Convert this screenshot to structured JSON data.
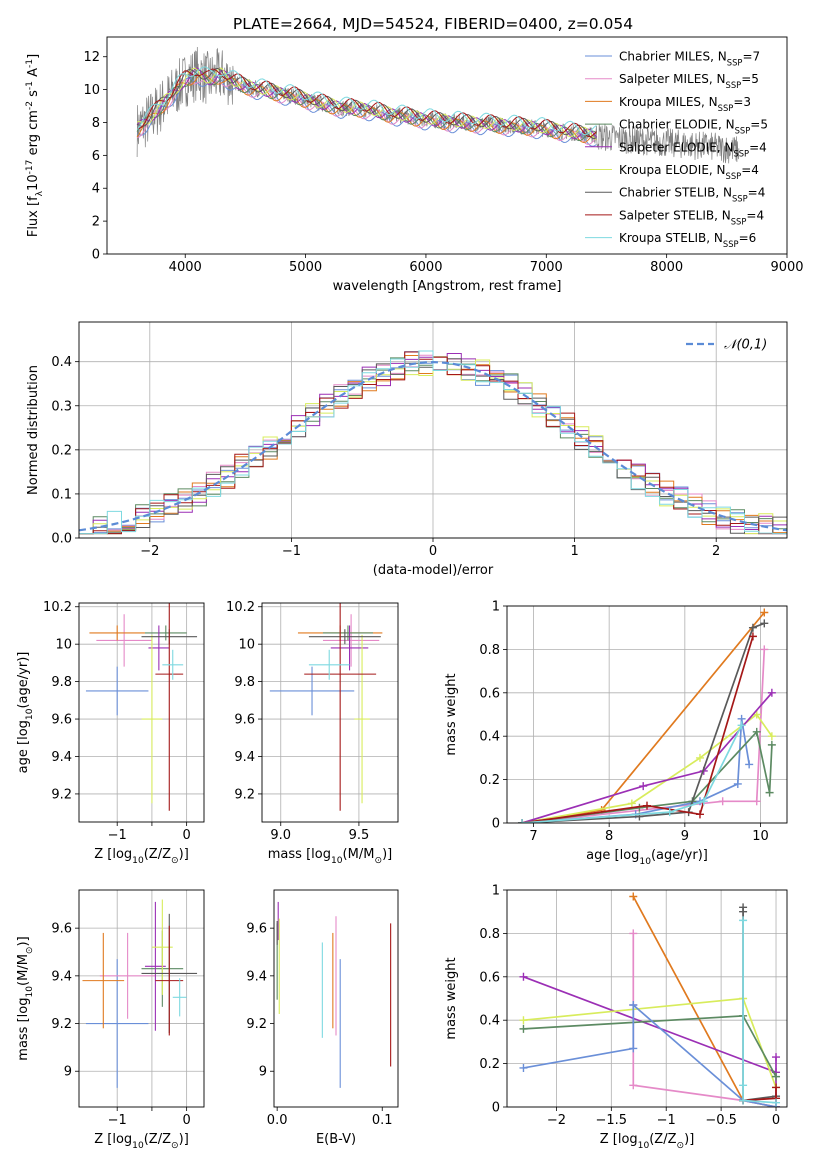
{
  "figure_title": "PLATE=2664, MJD=54524, FIBERID=0400, z=0.054",
  "legend_colors": {
    "Chabrier MILES": "#6a8fd8",
    "Salpeter MILES": "#e58ac8",
    "Kroupa MILES": "#e07a1f",
    "Chabrier ELODIE": "#5c8a62",
    "Salpeter ELODIE": "#9b2fb5",
    "Kroupa ELODIE": "#d8ec5c",
    "Chabrier STELIB": "#5a5a5a",
    "Salpeter STELIB": "#a51818",
    "Kroupa STELIB": "#7ed9e0"
  },
  "chart_data": [
    {
      "id": "spectrum",
      "type": "line",
      "xlabel": "wavelength [Angstrom, rest frame]",
      "ylabel": "Flux [f$_\\lambda$10$^{-17}$ erg cm$^{-2}$ s$^{-1}$ A$^{-1}$]",
      "xlim": [
        3350,
        9000
      ],
      "ylim": [
        0,
        13.2
      ],
      "xticks": [
        4000,
        5000,
        6000,
        7000,
        8000,
        9000
      ],
      "yticks": [
        0,
        2,
        4,
        6,
        8,
        10,
        12
      ],
      "data_color": "#808080",
      "continuum_x": [
        3600,
        3700,
        3800,
        3900,
        4000,
        4100,
        4200,
        4300,
        4400,
        4500,
        4700,
        4900,
        5100,
        5300,
        5500,
        5700,
        5900,
        6100,
        6300,
        6500,
        6700,
        6900,
        7100,
        7300,
        7500,
        7800,
        8100,
        8400,
        8600
      ],
      "continuum_y": [
        7.6,
        8.2,
        9.0,
        9.8,
        10.6,
        11.0,
        10.6,
        10.9,
        10.5,
        10.2,
        9.9,
        9.6,
        9.2,
        8.9,
        8.8,
        8.5,
        8.3,
        8.1,
        8.0,
        7.9,
        7.8,
        7.7,
        7.5,
        7.3,
        7.1,
        6.9,
        6.7,
        6.5,
        6.3
      ],
      "legend": [
        {
          "label": "Chabrier MILES, N$_{SSP}$=7",
          "color": "#6a8fd8"
        },
        {
          "label": "Salpeter MILES, N$_{SSP}$=5",
          "color": "#e58ac8"
        },
        {
          "label": "Kroupa MILES, N$_{SSP}$=3",
          "color": "#e07a1f"
        },
        {
          "label": "Chabrier ELODIE, N$_{SSP}$=5",
          "color": "#5c8a62"
        },
        {
          "label": "Salpeter ELODIE, N$_{SSP}$=4",
          "color": "#9b2fb5"
        },
        {
          "label": "Kroupa ELODIE, N$_{SSP}$=4",
          "color": "#d8ec5c"
        },
        {
          "label": "Chabrier STELIB, N$_{SSP}$=4",
          "color": "#5a5a5a"
        },
        {
          "label": "Salpeter STELIB, N$_{SSP}$=4",
          "color": "#a51818"
        },
        {
          "label": "Kroupa STELIB, N$_{SSP}$=6",
          "color": "#7ed9e0"
        }
      ]
    },
    {
      "id": "residuals",
      "type": "histogram",
      "xlabel": "(data-model)/error",
      "ylabel": "Normed distribution",
      "xlim": [
        -2.5,
        2.5
      ],
      "ylim": [
        0,
        0.49
      ],
      "xticks": [
        -2,
        -1,
        0,
        1,
        2
      ],
      "yticks": [
        0.0,
        0.1,
        0.2,
        0.3,
        0.4
      ],
      "grid": true,
      "legend_location": "top-right",
      "reference_label": "$\\mathcal{N}(0,1)$",
      "reference_color": "#5b8bd6",
      "bin_width": 0.1
    },
    {
      "id": "z-age",
      "type": "errorbar",
      "xlabel": "Z [log$_{10}$(Z/Z$_\\odot$)]",
      "ylabel": "age  [log$_{10}$(age/yr)]",
      "xlim": [
        -1.55,
        0.25
      ],
      "ylim": [
        9.05,
        10.22
      ],
      "xticks": [
        -1,
        -0.5,
        0
      ],
      "xticklabels": [
        "−1",
        "",
        "0"
      ],
      "yticks": [
        9.2,
        9.4,
        9.6,
        9.8,
        10.0,
        10.2
      ],
      "grid": true,
      "points": [
        {
          "color": "#6a8fd8",
          "x": -1.0,
          "xerr": 0.45,
          "y": 9.75,
          "yerr": 0.13
        },
        {
          "color": "#e58ac8",
          "x": -0.9,
          "xerr": 0.4,
          "y": 10.02,
          "yerr": 0.14
        },
        {
          "color": "#e07a1f",
          "x": -1.0,
          "xerr": 0.4,
          "y": 10.06,
          "yerr": 0.04
        },
        {
          "color": "#5c8a62",
          "x": -0.3,
          "xerr": 0.3,
          "y": 10.06,
          "yerr": 0.04
        },
        {
          "color": "#9b2fb5",
          "x": -0.4,
          "xerr": 0.15,
          "y": 9.98,
          "yerr": 0.12
        },
        {
          "color": "#d8ec5c",
          "x": -0.5,
          "xerr": 0.15,
          "y": 9.6,
          "yerr": 0.45
        },
        {
          "color": "#5a5a5a",
          "x": -0.25,
          "xerr": 0.4,
          "y": 10.04,
          "yerr": 0.04
        },
        {
          "color": "#a51818",
          "x": -0.25,
          "xerr": 0.2,
          "y": 9.84,
          "yerr": 0.73
        },
        {
          "color": "#7ed9e0",
          "x": -0.2,
          "xerr": 0.15,
          "y": 9.89,
          "yerr": 0.08
        }
      ]
    },
    {
      "id": "mass-age",
      "type": "errorbar",
      "xlabel": "mass [log$_{10}$(M/M$_\\odot$)]",
      "ylabel": "",
      "xlim": [
        8.88,
        9.75
      ],
      "ylim": [
        9.05,
        10.22
      ],
      "xticks": [
        9.0,
        9.5
      ],
      "xticklabels": [
        "9.0",
        "9.5"
      ],
      "yticks": [
        9.2,
        9.4,
        9.6,
        9.8,
        10.0,
        10.2
      ],
      "grid": true,
      "points": [
        {
          "color": "#6a8fd8",
          "x": 9.2,
          "xerr": 0.27,
          "y": 9.75,
          "yerr": 0.13
        },
        {
          "color": "#e58ac8",
          "x": 9.45,
          "xerr": 0.18,
          "y": 10.02,
          "yerr": 0.14
        },
        {
          "color": "#e07a1f",
          "x": 9.38,
          "xerr": 0.27,
          "y": 10.06,
          "yerr": 0.04
        },
        {
          "color": "#5c8a62",
          "x": 9.43,
          "xerr": 0.16,
          "y": 10.06,
          "yerr": 0.04
        },
        {
          "color": "#9b2fb5",
          "x": 9.44,
          "xerr": 0.12,
          "y": 9.98,
          "yerr": 0.12
        },
        {
          "color": "#d8ec5c",
          "x": 9.52,
          "xerr": 0.05,
          "y": 9.6,
          "yerr": 0.45
        },
        {
          "color": "#5a5a5a",
          "x": 9.41,
          "xerr": 0.23,
          "y": 10.04,
          "yerr": 0.04
        },
        {
          "color": "#a51818",
          "x": 9.38,
          "xerr": 0.23,
          "y": 9.84,
          "yerr": 0.73
        },
        {
          "color": "#7ed9e0",
          "x": 9.31,
          "xerr": 0.13,
          "y": 9.89,
          "yerr": 0.08
        }
      ]
    },
    {
      "id": "age-weight",
      "type": "line",
      "xlabel": "age  [log$_{10}$(age/yr)]",
      "ylabel": "mass weight",
      "xlim": [
        6.65,
        10.35
      ],
      "ylim": [
        0,
        1.0
      ],
      "xticks": [
        7,
        8,
        9,
        10
      ],
      "yticks": [
        0.0,
        0.2,
        0.4,
        0.6,
        0.8,
        1.0
      ],
      "grid": true,
      "series": [
        {
          "color": "#e07a1f",
          "x": [
            6.85,
            7.9,
            10.05
          ],
          "y": [
            0.0,
            0.06,
            0.97
          ]
        },
        {
          "color": "#e58ac8",
          "x": [
            6.85,
            9.5,
            9.95,
            10.05
          ],
          "y": [
            0.0,
            0.1,
            0.1,
            0.8
          ]
        },
        {
          "color": "#d8ec5c",
          "x": [
            6.85,
            8.3,
            9.2,
            9.95,
            10.15
          ],
          "y": [
            0.0,
            0.09,
            0.3,
            0.5,
            0.4
          ]
        },
        {
          "color": "#9b2fb5",
          "x": [
            6.85,
            8.45,
            9.25,
            10.15
          ],
          "y": [
            0.0,
            0.17,
            0.24,
            0.6
          ]
        },
        {
          "color": "#6a8fd8",
          "x": [
            6.85,
            8.35,
            9.2,
            9.7,
            9.75,
            9.85
          ],
          "y": [
            0.0,
            0.04,
            0.1,
            0.18,
            0.48,
            0.27
          ]
        },
        {
          "color": "#5c8a62",
          "x": [
            6.85,
            8.4,
            9.1,
            9.95,
            10.12,
            10.15
          ],
          "y": [
            0.0,
            0.07,
            0.1,
            0.42,
            0.14,
            0.36
          ]
        },
        {
          "color": "#5a5a5a",
          "x": [
            6.85,
            8.4,
            9.05,
            9.9,
            10.05
          ],
          "y": [
            0.0,
            0.03,
            0.05,
            0.9,
            0.92
          ]
        },
        {
          "color": "#a51818",
          "x": [
            6.85,
            8.5,
            9.2,
            9.9
          ],
          "y": [
            0.0,
            0.08,
            0.04,
            0.86
          ]
        },
        {
          "color": "#7ed9e0",
          "x": [
            6.85,
            8.8,
            9.25,
            9.75
          ],
          "y": [
            0.0,
            0.05,
            0.1,
            0.45
          ]
        }
      ]
    },
    {
      "id": "z-mass",
      "type": "errorbar",
      "xlabel": "Z [log$_{10}$(Z/Z$_\\odot$)]",
      "ylabel": "mass [log$_{10}$(M/M$_\\odot$)]",
      "xlim": [
        -1.55,
        0.25
      ],
      "ylim": [
        8.85,
        9.76
      ],
      "xticks": [
        -1,
        -0.5,
        0
      ],
      "xticklabels": [
        "−1",
        "",
        "0"
      ],
      "yticks": [
        9.0,
        9.2,
        9.4,
        9.6
      ],
      "grid": true,
      "points": [
        {
          "color": "#6a8fd8",
          "x": -1.0,
          "xerr": 0.45,
          "y": 9.2,
          "yerr": 0.27
        },
        {
          "color": "#e58ac8",
          "x": -0.85,
          "xerr": 0.4,
          "y": 9.4,
          "yerr": 0.18
        },
        {
          "color": "#e07a1f",
          "x": -1.2,
          "xerr": 0.3,
          "y": 9.38,
          "yerr": 0.2
        },
        {
          "color": "#5c8a62",
          "x": -0.35,
          "xerr": 0.3,
          "y": 9.43,
          "yerr": 0.16
        },
        {
          "color": "#9b2fb5",
          "x": -0.45,
          "xerr": 0.15,
          "y": 9.44,
          "yerr": 0.27
        },
        {
          "color": "#d8ec5c",
          "x": -0.35,
          "xerr": 0.15,
          "y": 9.52,
          "yerr": 0.2
        },
        {
          "color": "#5a5a5a",
          "x": -0.25,
          "xerr": 0.4,
          "y": 9.41,
          "yerr": 0.25
        },
        {
          "color": "#a51818",
          "x": -0.25,
          "xerr": 0.2,
          "y": 9.38,
          "yerr": 0.23
        },
        {
          "color": "#7ed9e0",
          "x": -0.1,
          "xerr": 0.1,
          "y": 9.31,
          "yerr": 0.08
        }
      ]
    },
    {
      "id": "ebv-mass",
      "type": "errorbar",
      "xlabel": "E(B-V)",
      "ylabel": "",
      "xlim": [
        -0.003,
        0.115
      ],
      "ylim": [
        8.85,
        9.76
      ],
      "xticks": [
        0.0,
        0.1
      ],
      "xticklabels": [
        "0.0",
        "0.1"
      ],
      "yticks": [
        9.0,
        9.2,
        9.4,
        9.6
      ],
      "grid": false,
      "points": [
        {
          "color": "#6a8fd8",
          "x": 0.06,
          "xerr": 0,
          "y": 9.2,
          "yerr": 0.27
        },
        {
          "color": "#e58ac8",
          "x": 0.056,
          "xerr": 0,
          "y": 9.4,
          "yerr": 0.25
        },
        {
          "color": "#e07a1f",
          "x": 0.053,
          "xerr": 0,
          "y": 9.38,
          "yerr": 0.2
        },
        {
          "color": "#5c8a62",
          "x": 0.0,
          "xerr": 0,
          "y": 9.46,
          "yerr": 0.16
        },
        {
          "color": "#9b2fb5",
          "x": 0.001,
          "xerr": 0,
          "y": 9.63,
          "yerr": 0.08
        },
        {
          "color": "#d8ec5c",
          "x": 0.002,
          "xerr": 0,
          "y": 9.44,
          "yerr": 0.2
        },
        {
          "color": "#5a5a5a",
          "x": 0.0,
          "xerr": 0,
          "y": 9.58,
          "yerr": 0.05
        },
        {
          "color": "#a51818",
          "x": 0.108,
          "xerr": 0,
          "y": 9.32,
          "yerr": 0.3
        },
        {
          "color": "#7ed9e0",
          "x": 0.043,
          "xerr": 0,
          "y": 9.34,
          "yerr": 0.2
        }
      ]
    },
    {
      "id": "z-weight",
      "type": "line",
      "xlabel": "Z [log$_{10}$(Z/Z$_\\odot$)]",
      "ylabel": "mass weight",
      "xlim": [
        -2.45,
        0.1
      ],
      "ylim": [
        0,
        1.0
      ],
      "xticks": [
        -2.0,
        -1.5,
        -1.0,
        -0.5,
        0.0
      ],
      "yticks": [
        0.0,
        0.2,
        0.4,
        0.6,
        0.8,
        1.0
      ],
      "grid": true,
      "series": [
        {
          "color": "#e07a1f",
          "x": [
            -1.3,
            -0.3,
            0.0
          ],
          "y": [
            0.97,
            0.03,
            0.0
          ]
        },
        {
          "color": "#e58ac8",
          "x": [
            -1.3,
            -1.3,
            -1.3,
            -0.3,
            0.0
          ],
          "y": [
            0.8,
            0.47,
            0.1,
            0.03,
            0.0
          ]
        },
        {
          "color": "#9b2fb5",
          "x": [
            -2.3,
            0.0,
            0.0,
            0.0
          ],
          "y": [
            0.6,
            0.16,
            0.23,
            0.0
          ]
        },
        {
          "color": "#d8ec5c",
          "x": [
            -2.3,
            -0.3,
            0.0
          ],
          "y": [
            0.4,
            0.5,
            0.09
          ]
        },
        {
          "color": "#5c8a62",
          "x": [
            -2.3,
            -0.3,
            0.0
          ],
          "y": [
            0.36,
            0.42,
            0.14
          ]
        },
        {
          "color": "#6a8fd8",
          "x": [
            -2.3,
            -1.3,
            -1.3,
            -0.3,
            0.0
          ],
          "y": [
            0.18,
            0.27,
            0.47,
            0.03,
            0.0
          ]
        },
        {
          "color": "#5a5a5a",
          "x": [
            -0.3,
            -0.3,
            -0.3,
            0.0
          ],
          "y": [
            0.92,
            0.9,
            0.03,
            0.05
          ]
        },
        {
          "color": "#a51818",
          "x": [
            -0.3,
            0.0,
            0.0
          ],
          "y": [
            0.03,
            0.04,
            0.09
          ]
        },
        {
          "color": "#7ed9e0",
          "x": [
            -0.3,
            -0.3,
            -0.3,
            0.0
          ],
          "y": [
            0.86,
            0.1,
            0.03,
            0.02
          ]
        }
      ]
    }
  ]
}
